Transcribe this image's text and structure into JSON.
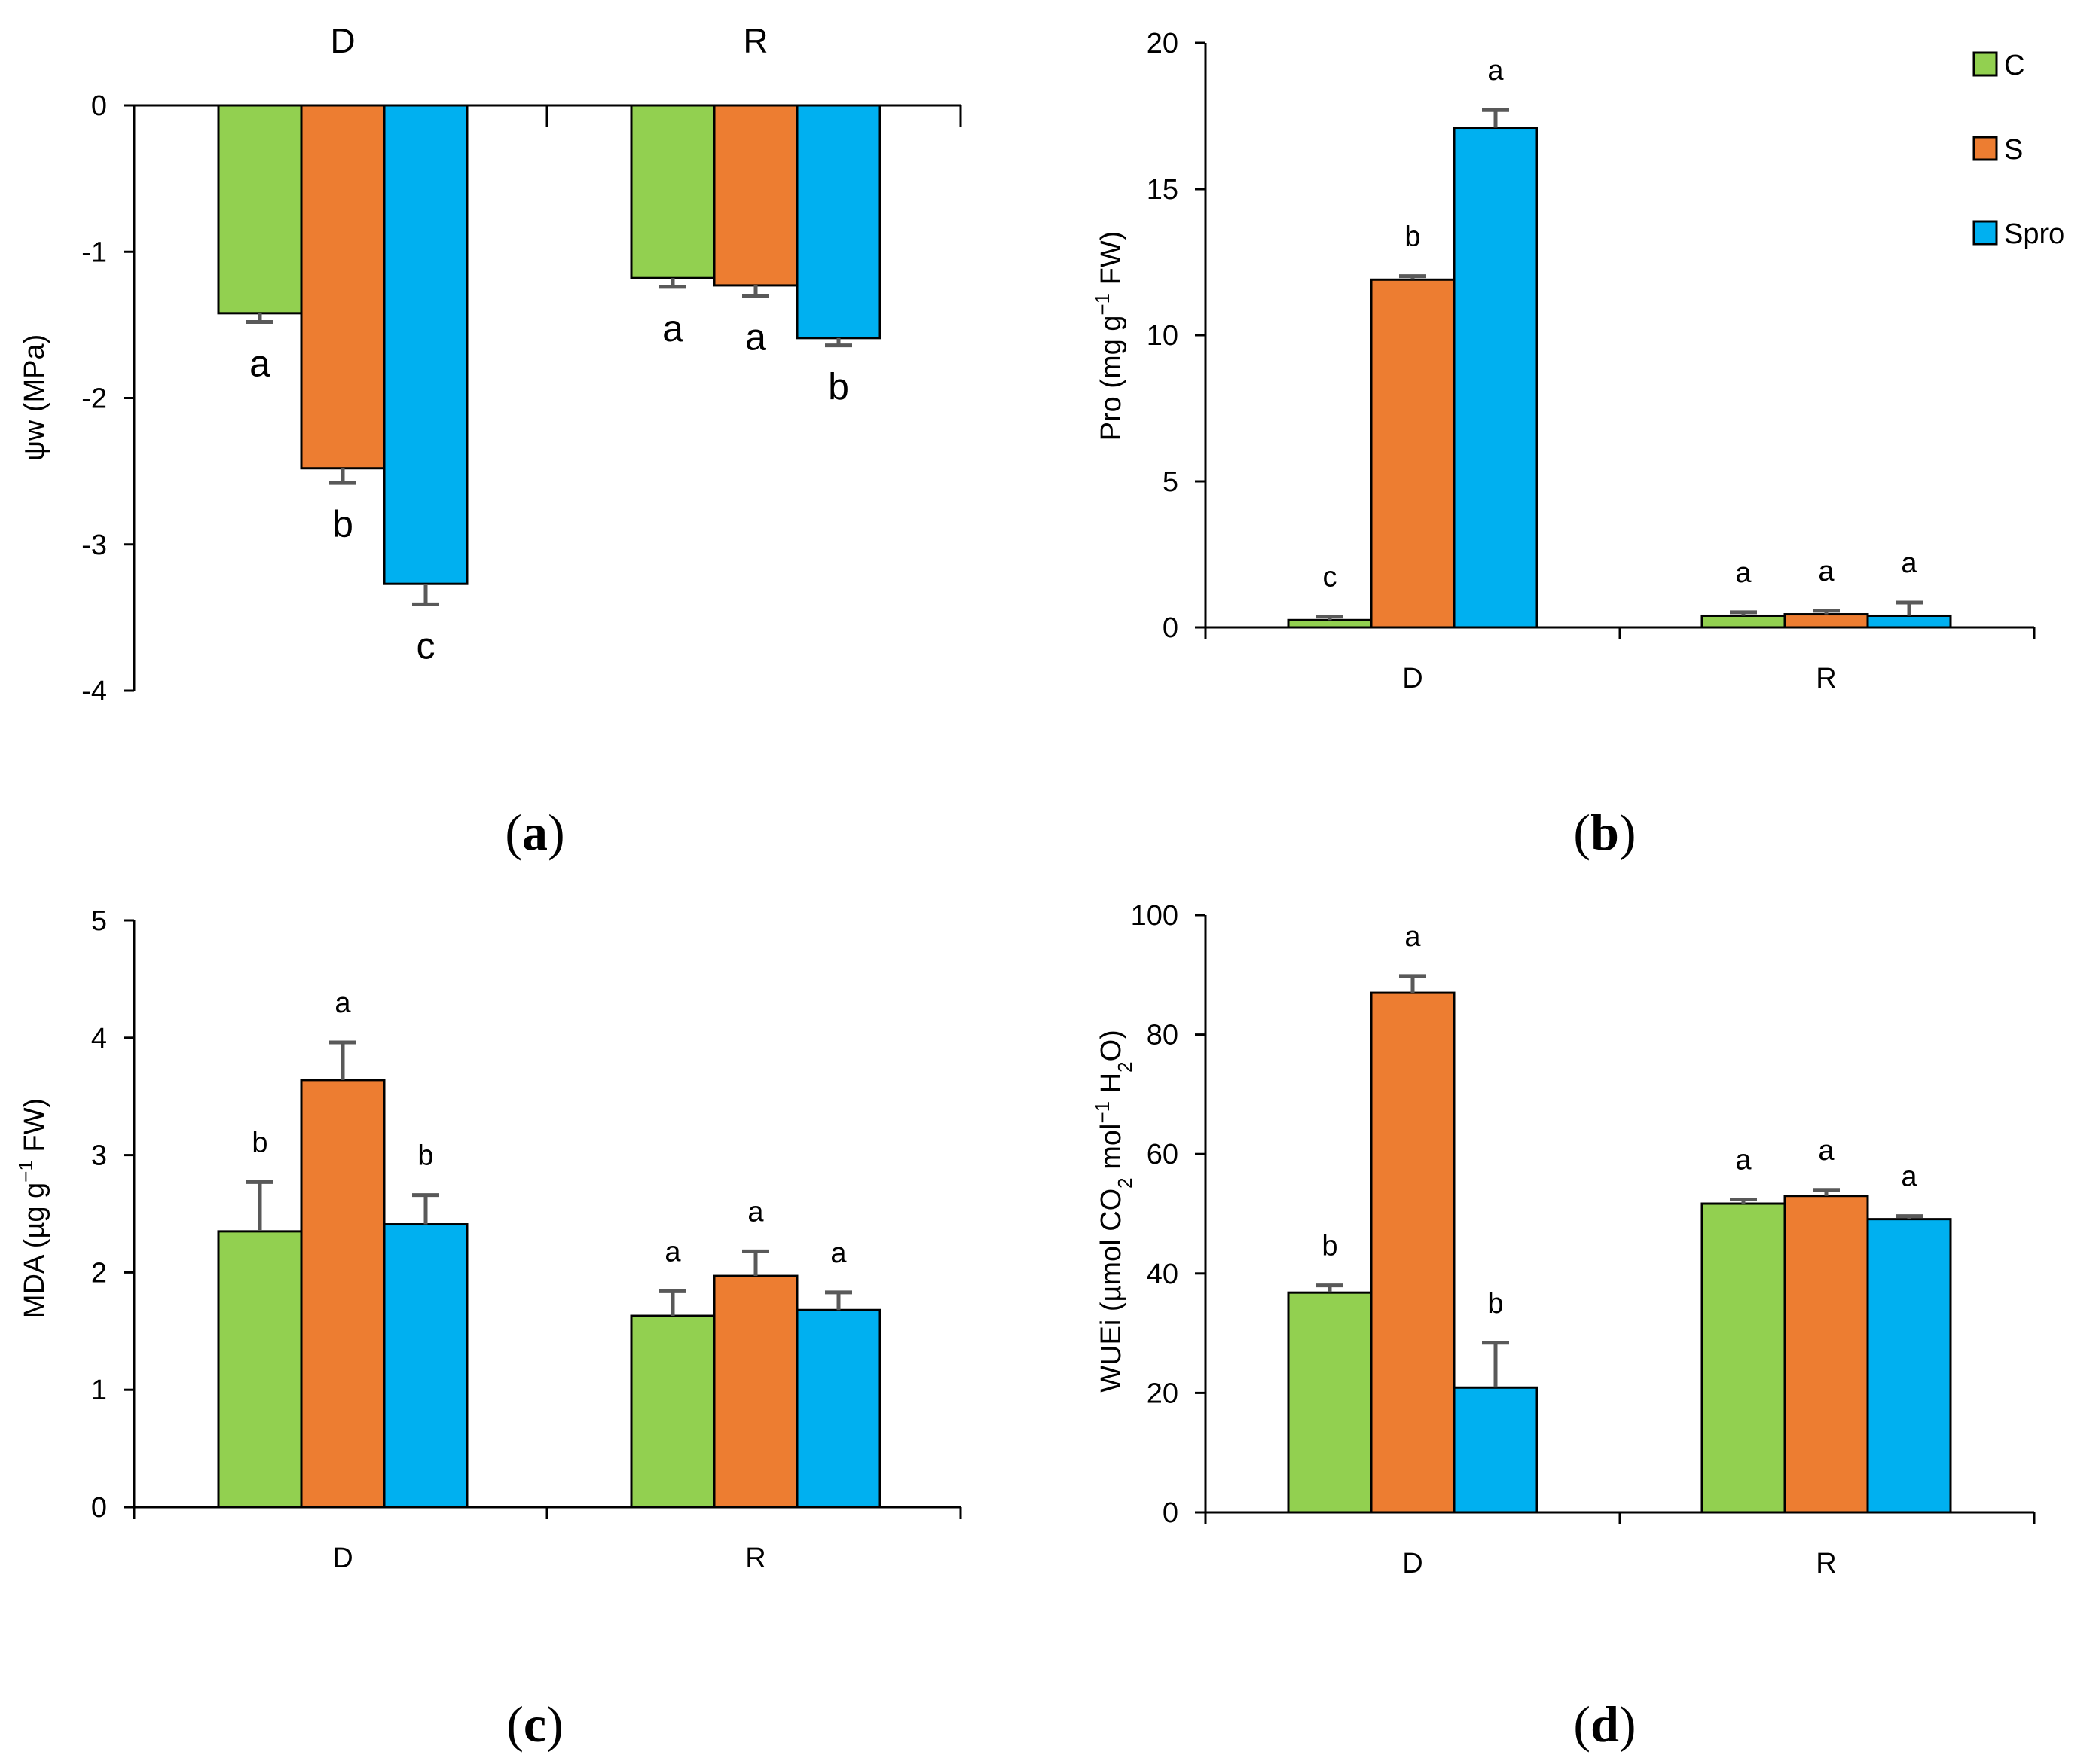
{
  "colors": {
    "C": "#92d050",
    "S": "#ed7d31",
    "Spro": "#00b0f0",
    "error": "#595959",
    "axis": "#000000"
  },
  "legend": {
    "title_hidden": "",
    "entries": [
      {
        "key": "C",
        "label": "C"
      },
      {
        "key": "S",
        "label": "S"
      },
      {
        "key": "Spro",
        "label": "Spro"
      }
    ]
  },
  "chart_data": [
    {
      "id": "a",
      "panel_label": "a",
      "type": "bar",
      "ylabel": "ψw (MPa)",
      "ylim": [
        -4,
        0
      ],
      "yticks": [
        0,
        -1,
        -2,
        -3,
        -4
      ],
      "category_position": "top",
      "categories": [
        "D",
        "R"
      ],
      "series": [
        {
          "name": "C",
          "values": [
            -1.42,
            -1.18
          ],
          "errors": [
            0.06,
            0.06
          ],
          "letters": [
            "a",
            "a"
          ]
        },
        {
          "name": "S",
          "values": [
            -2.48,
            -1.23
          ],
          "errors": [
            0.1,
            0.07
          ],
          "letters": [
            "b",
            "a"
          ]
        },
        {
          "name": "Spro",
          "values": [
            -3.27,
            -1.59
          ],
          "errors": [
            0.14,
            0.05
          ],
          "letters": [
            "c",
            "b"
          ]
        }
      ]
    },
    {
      "id": "b",
      "panel_label": "b",
      "type": "bar",
      "ylabel_main": "Pro (mg g",
      "ylabel_sup": "−1",
      "ylabel_end": " FW)",
      "ylim": [
        0,
        20
      ],
      "yticks": [
        0,
        5,
        10,
        15,
        20
      ],
      "category_position": "bottom",
      "categories": [
        "D",
        "R"
      ],
      "series": [
        {
          "name": "C",
          "values": [
            0.25,
            0.4
          ],
          "errors": [
            0.12,
            0.12
          ],
          "letters": [
            "c",
            "a"
          ]
        },
        {
          "name": "S",
          "values": [
            11.9,
            0.45
          ],
          "errors": [
            0.12,
            0.12
          ],
          "letters": [
            "b",
            "a"
          ]
        },
        {
          "name": "Spro",
          "values": [
            17.1,
            0.4
          ],
          "errors": [
            0.6,
            0.45
          ],
          "letters": [
            "a",
            "a"
          ]
        }
      ]
    },
    {
      "id": "c",
      "panel_label": "c",
      "type": "bar",
      "ylabel_main": "MDA (µg g",
      "ylabel_sup": "−1",
      "ylabel_end": " FW)",
      "ylim": [
        0,
        5
      ],
      "yticks": [
        0,
        1,
        2,
        3,
        4,
        5
      ],
      "category_position": "bottom",
      "categories": [
        "D",
        "R"
      ],
      "series": [
        {
          "name": "C",
          "values": [
            2.35,
            1.63
          ],
          "errors": [
            0.42,
            0.21
          ],
          "letters": [
            "b",
            "a"
          ]
        },
        {
          "name": "S",
          "values": [
            3.64,
            1.97
          ],
          "errors": [
            0.32,
            0.21
          ],
          "letters": [
            "a",
            "a"
          ]
        },
        {
          "name": "Spro",
          "values": [
            2.41,
            1.68
          ],
          "errors": [
            0.25,
            0.15
          ],
          "letters": [
            "b",
            "a"
          ]
        }
      ]
    },
    {
      "id": "d",
      "panel_label": "d",
      "type": "bar",
      "ylabel_main": "WUEi (µmol CO",
      "ylabel_sub1": "2",
      "ylabel_mid": " mol",
      "ylabel_sup": "−1",
      "ylabel_h": " H",
      "ylabel_sub2": "2",
      "ylabel_end": "O)",
      "ylim": [
        0,
        100
      ],
      "yticks": [
        0,
        20,
        40,
        60,
        80,
        100
      ],
      "category_position": "bottom",
      "categories": [
        "D",
        "R"
      ],
      "series": [
        {
          "name": "C",
          "values": [
            36.8,
            51.7
          ],
          "errors": [
            1.2,
            0.7
          ],
          "letters": [
            "b",
            "a"
          ]
        },
        {
          "name": "S",
          "values": [
            87.0,
            53.0
          ],
          "errors": [
            2.8,
            1.0
          ],
          "letters": [
            "a",
            "a"
          ]
        },
        {
          "name": "Spro",
          "values": [
            20.9,
            49.1
          ],
          "errors": [
            7.5,
            0.5
          ],
          "letters": [
            "b",
            "a"
          ]
        }
      ]
    }
  ]
}
